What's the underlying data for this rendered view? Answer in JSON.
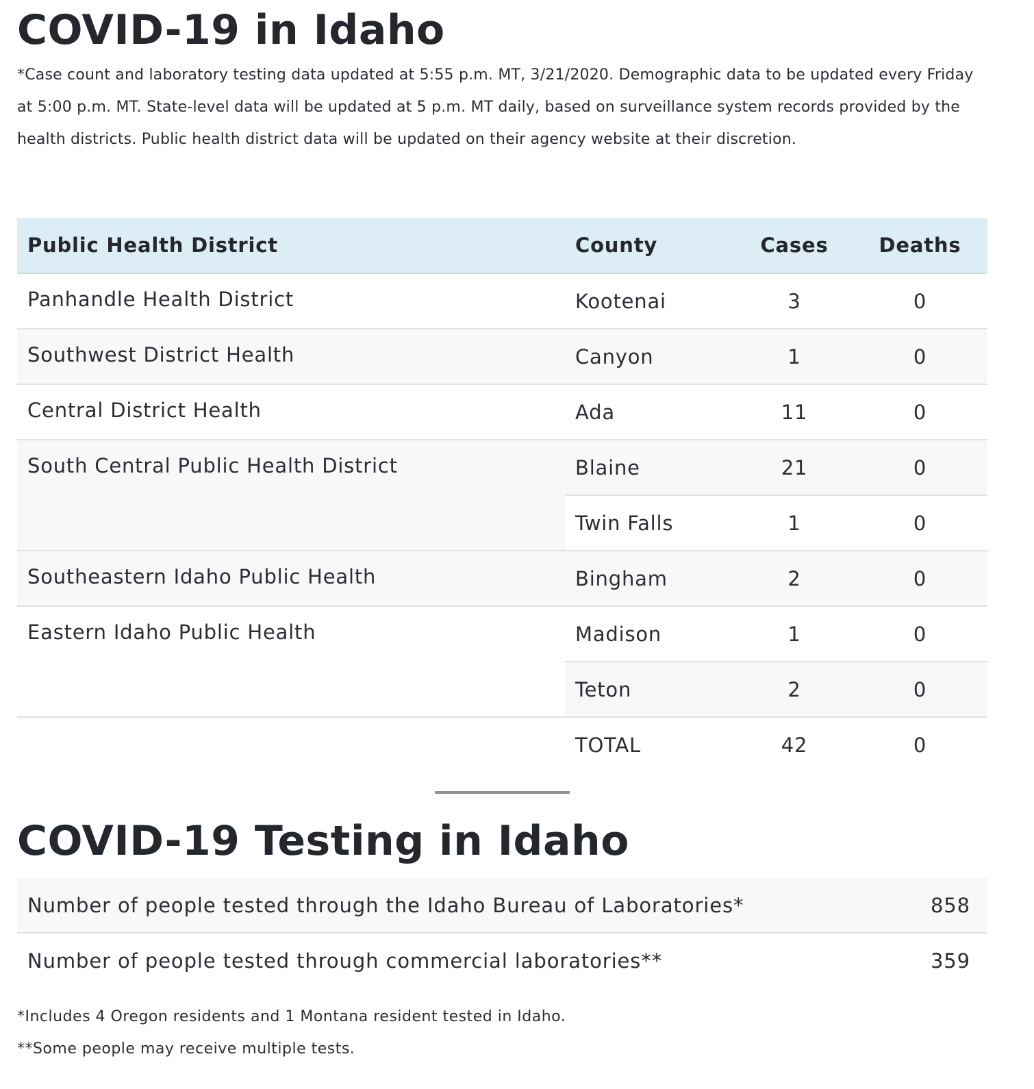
{
  "title": "COVID-19 in Idaho",
  "intro": "*Case count and laboratory testing data updated at 5:55 p.m. MT, 3/21/2020. Demographic data to be updated every Friday at 5:00 p.m. MT. State-level data will be updated at 5 p.m. MT daily, based on surveillance system records provided by the health districts. Public health district data will be updated on their agency website at their discretion.",
  "cases_table": {
    "headers": {
      "district": "Public Health District",
      "county": "County",
      "cases": "Cases",
      "deaths": "Deaths"
    },
    "rows": [
      {
        "district": "Panhandle Health District",
        "county": "Kootenai",
        "cases": "3",
        "deaths": "0"
      },
      {
        "district": "Southwest District Health",
        "county": "Canyon",
        "cases": "1",
        "deaths": "0"
      },
      {
        "district": "Central District Health",
        "county": "Ada",
        "cases": "11",
        "deaths": "0"
      },
      {
        "district": "South Central Public Health District",
        "county": "Blaine",
        "cases": "21",
        "deaths": "0"
      },
      {
        "district": "",
        "county": "Twin Falls",
        "cases": "1",
        "deaths": "0"
      },
      {
        "district": "Southeastern Idaho Public Health",
        "county": "Bingham",
        "cases": "2",
        "deaths": "0"
      },
      {
        "district": "Eastern Idaho Public Health",
        "county": "Madison",
        "cases": "1",
        "deaths": "0"
      },
      {
        "district": "",
        "county": "Teton",
        "cases": "2",
        "deaths": "0"
      }
    ],
    "total": {
      "label": "TOTAL",
      "cases": "42",
      "deaths": "0"
    }
  },
  "testing": {
    "title": "COVID-19 Testing in Idaho",
    "rows": [
      {
        "label": "Number of people tested through the Idaho Bureau of Laboratories*",
        "value": "858"
      },
      {
        "label": "Number of people tested through commercial laboratories**",
        "value": "359"
      }
    ],
    "footnotes": [
      "*Includes 4 Oregon residents and 1 Montana resident tested in Idaho.",
      "**Some people may receive multiple tests."
    ]
  },
  "colors": {
    "header_bg": "#dcedf5",
    "alt_row_bg": "#f8f8f8",
    "text": "#2a2d33",
    "divider": "#8c959c"
  }
}
